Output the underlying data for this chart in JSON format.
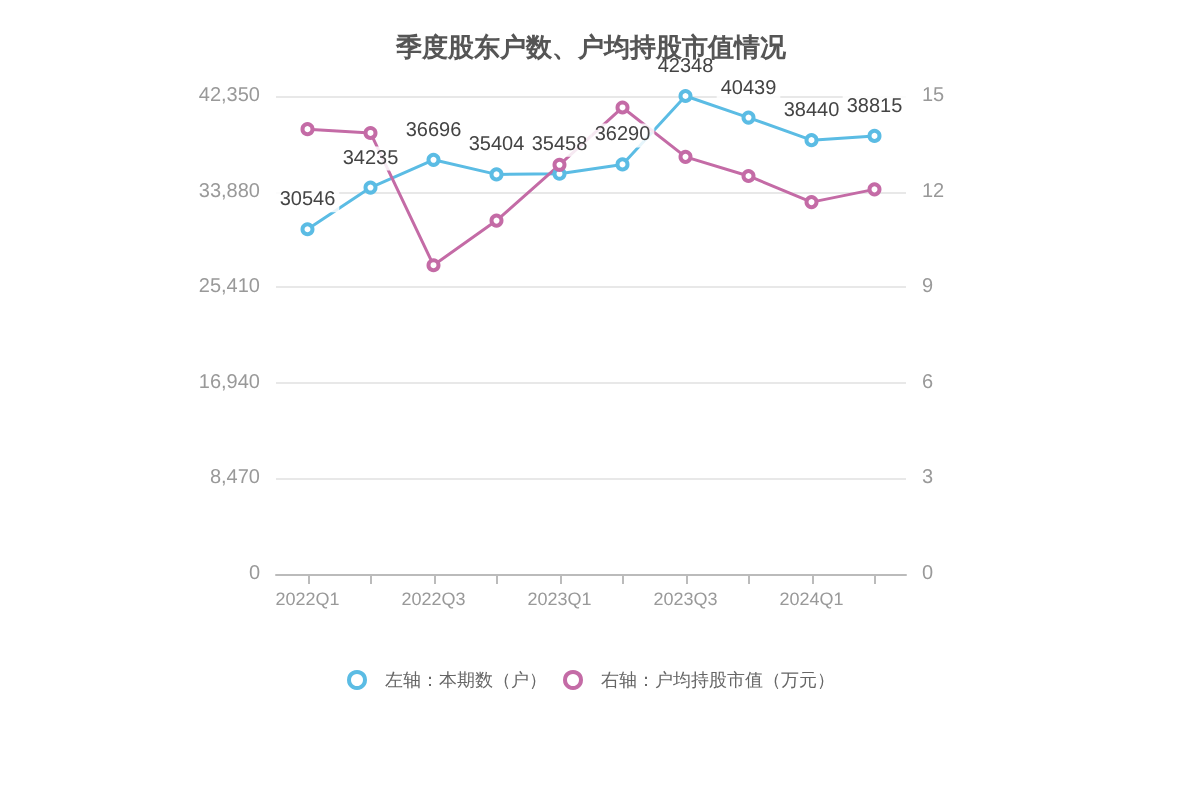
{
  "chart_data": {
    "type": "line",
    "title": "季度股东户数、户均持股市值情况",
    "categories": [
      "2022Q1",
      null,
      "2022Q3",
      null,
      "2023Q1",
      null,
      "2023Q3",
      null,
      "2024Q1",
      null
    ],
    "series": [
      {
        "name": "左轴：本期数（户）",
        "color": "#5bbce4",
        "values": [
          30546,
          34235,
          36696,
          35404,
          35458,
          36290,
          42348,
          40439,
          38440,
          38815
        ],
        "value_labels": [
          "30546",
          "34235",
          "36696",
          "35404",
          "35458",
          "36290",
          "42348",
          "40439",
          "38440",
          "38815"
        ]
      },
      {
        "name": "右轴：户均持股市值（万元）",
        "color": "#c46ba6",
        "axis": "y2",
        "values": [
          13.96,
          13.84,
          9.69,
          11.09,
          12.84,
          14.64,
          13.09,
          12.49,
          11.67,
          12.07
        ]
      }
    ],
    "ylim": [
      0,
      42350
    ],
    "yticks": [
      0,
      {
        "value": 8470,
        "label": "8,470"
      },
      {
        "value": 16940,
        "label": "16,940"
      },
      {
        "value": 25410,
        "label": "25,410"
      },
      {
        "value": 33880,
        "label": "33,880"
      },
      {
        "value": 42350,
        "label": "42,350"
      }
    ],
    "y2lim": [
      0,
      15
    ],
    "y2ticks": [
      0,
      3,
      6,
      9,
      12,
      15
    ],
    "grid": "y",
    "legend": "bottom",
    "marker": "circle",
    "line_style": "solid"
  }
}
